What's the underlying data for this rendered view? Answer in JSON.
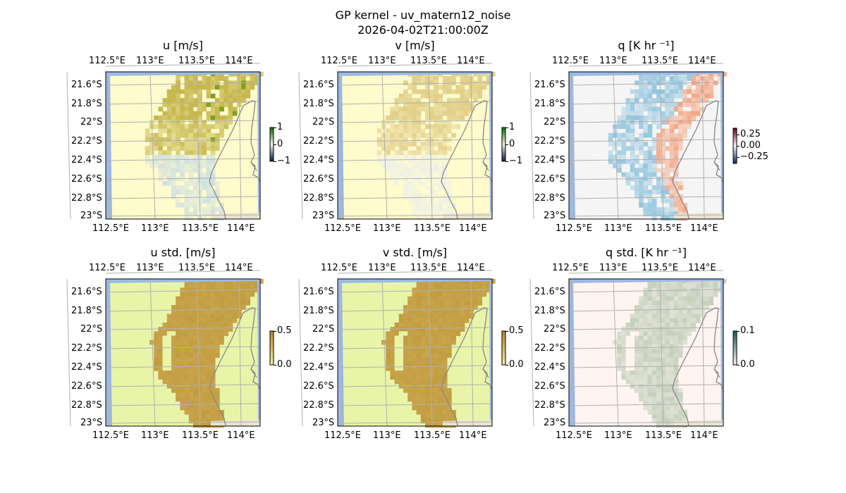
{
  "figure": {
    "title_line1": "GP kernel - uv_matern12_noise",
    "title_line2": "2026-04-02T21:00:00Z"
  },
  "chart_data": {
    "type": "heatmap",
    "lon_ticks": [
      "112.5°E",
      "113°E",
      "113.5°E",
      "114°E"
    ],
    "lat_ticks": [
      "21.6°S",
      "21.8°S",
      "22°S",
      "22.2°S",
      "22.4°S",
      "22.6°S",
      "22.8°S",
      "23°S"
    ],
    "grid": true,
    "panels": [
      {
        "id": "u",
        "title": "u [m/s]",
        "colorbar": {
          "ticks": [
            "1",
            "0",
            "−1"
          ],
          "range": [
            -1,
            1
          ],
          "colors": [
            "#00204c",
            "#f0f0e0",
            "#0b6b0b"
          ]
        },
        "field": "mean",
        "bg": "#fffbcc",
        "hi": "#c6b84e",
        "lo": "#cfe0e0"
      },
      {
        "id": "v",
        "title": "v [m/s]",
        "colorbar": {
          "ticks": [
            "1",
            "0",
            "−1"
          ],
          "range": [
            -1,
            1
          ],
          "colors": [
            "#00204c",
            "#f0f0e0",
            "#0b6b0b"
          ]
        },
        "field": "mean",
        "bg": "#fffbcc",
        "hi": "#e2d08a",
        "lo": "#eef0e8"
      },
      {
        "id": "q",
        "title": "q [K hr ⁻¹]",
        "colorbar": {
          "ticks": [
            "0.25",
            "0.00",
            "−0.25"
          ],
          "range": [
            -0.35,
            0.35
          ],
          "colors": [
            "#053061",
            "#f7f7f7",
            "#67001f"
          ]
        },
        "field": "diverging",
        "bg": "#f5f5f5",
        "hi": "#f4a582",
        "lo": "#92c5de"
      },
      {
        "id": "u_std",
        "title": "u std. [m/s]",
        "colorbar": {
          "ticks": [
            "0.5",
            "0.0"
          ],
          "range": [
            0,
            0.5
          ],
          "colors": [
            "#f5f0a0",
            "#b8862b"
          ]
        },
        "field": "std",
        "bg": "#e8f5a8",
        "hi": "#c8a44c",
        "lo": "#e8f5a8"
      },
      {
        "id": "v_std",
        "title": "v std. [m/s]",
        "colorbar": {
          "ticks": [
            "0.5",
            "0.0"
          ],
          "range": [
            0,
            0.5
          ],
          "colors": [
            "#f5f0a0",
            "#b8862b"
          ]
        },
        "field": "std",
        "bg": "#e8f5a8",
        "hi": "#c8a44c",
        "lo": "#e8f5a8"
      },
      {
        "id": "q_std",
        "title": "q std. [K hr ⁻¹]",
        "colorbar": {
          "ticks": [
            "0.1",
            "0.0"
          ],
          "range": [
            0,
            0.1
          ],
          "colors": [
            "#fff5f0",
            "#0f6060"
          ]
        },
        "field": "std",
        "bg": "#fff4f0",
        "hi": "#c4d0bc",
        "lo": "#fff4f0"
      }
    ],
    "land_color": "#e8e4d0",
    "ocean_edge_color": "#9bb9e3"
  }
}
